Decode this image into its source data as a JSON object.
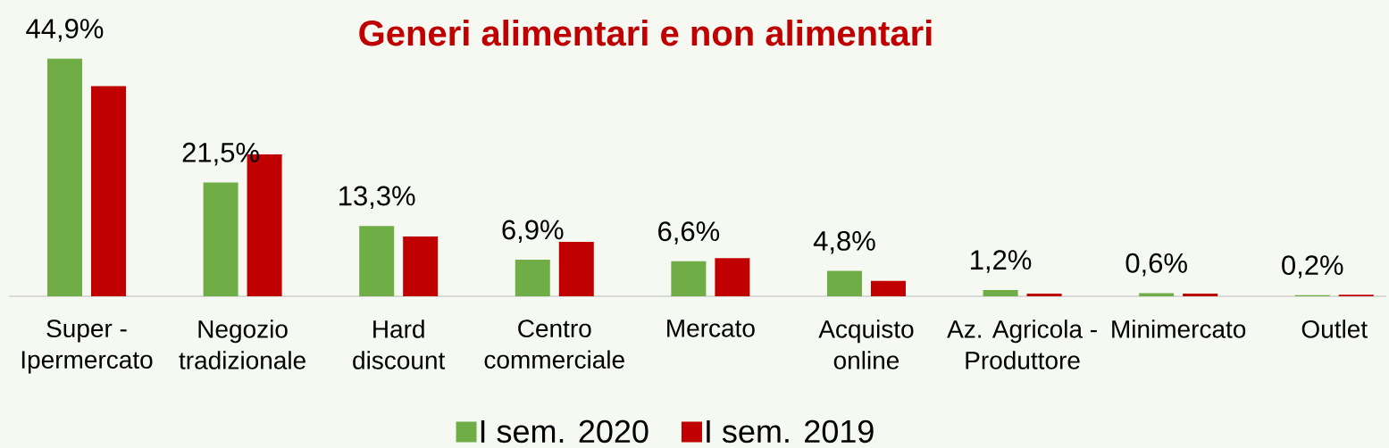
{
  "chart_data": {
    "type": "bar",
    "title": "Generi alimentari e non alimentari",
    "categories": [
      "Super - Ipermercato",
      "Negozio tradizionale",
      "Hard discount",
      "Centro commerciale",
      "Mercato",
      "Acquisto online",
      "Az. Agricola - Produttore",
      "Minimercato",
      "Outlet"
    ],
    "series": [
      {
        "name": "I sem. 2020",
        "color": "#70ad47",
        "values": [
          44.9,
          21.5,
          13.3,
          6.9,
          6.6,
          4.8,
          1.2,
          0.6,
          0.2
        ],
        "value_labels": [
          "44,9%",
          "21,5%",
          "13,3%",
          "6,9%",
          "6,6%",
          "4,8%",
          "1,2%",
          "0,6%",
          "0,2%"
        ]
      },
      {
        "name": "I sem. 2019",
        "color": "#c00000",
        "values": [
          39.7,
          26.8,
          11.3,
          10.3,
          7.2,
          2.9,
          0.5,
          0.5,
          0.3
        ]
      }
    ],
    "legend": "bottom"
  }
}
